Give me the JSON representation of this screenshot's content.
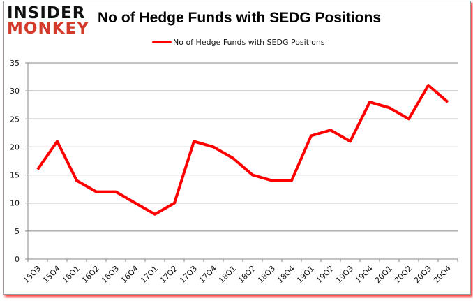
{
  "logo": {
    "line1": "INSIDER",
    "line2": "MONKEY"
  },
  "chart_data": {
    "type": "line",
    "title": "No of Hedge Funds with SEDG Positions",
    "categories": [
      "15Q3",
      "15Q4",
      "16Q1",
      "16Q2",
      "16Q3",
      "16Q4",
      "17Q1",
      "17Q2",
      "17Q3",
      "17Q4",
      "18Q1",
      "18Q2",
      "18Q3",
      "18Q4",
      "19Q1",
      "19Q2",
      "19Q3",
      "19Q4",
      "20Q1",
      "20Q2",
      "20Q3",
      "20Q4"
    ],
    "series": [
      {
        "name": "No of Hedge Funds with SEDG Positions",
        "values": [
          16,
          21,
          14,
          12,
          12,
          10,
          8,
          10,
          21,
          20,
          18,
          15,
          14,
          14,
          22,
          23,
          21,
          28,
          27,
          25,
          31,
          28
        ],
        "color": "#ff0000"
      }
    ],
    "ylim": [
      0,
      35
    ],
    "yticks": [
      0,
      5,
      10,
      15,
      20,
      25,
      30,
      35
    ],
    "grid": true,
    "legend": "top-center",
    "xlabel": "",
    "ylabel": ""
  }
}
